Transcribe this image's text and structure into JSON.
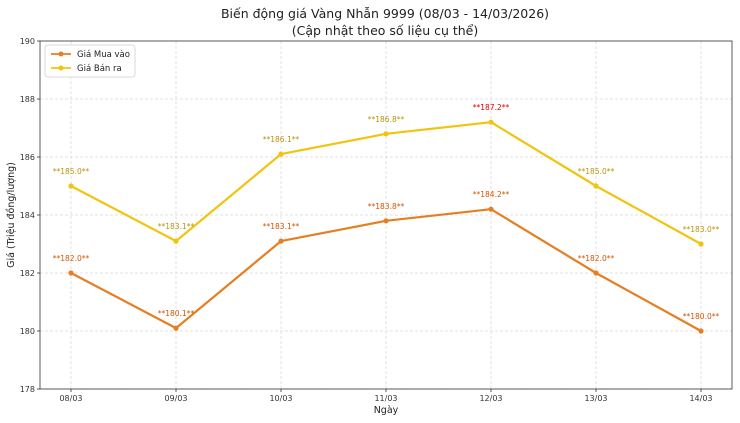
{
  "chart_data": {
    "type": "line",
    "title": "Biến động giá Vàng Nhẫn 9999 (08/03 - 14/03/2026)",
    "subtitle": "(Cập nhật theo số liệu cụ thể)",
    "xlabel": "Ngày",
    "ylabel": "Giá (Triệu đồng/lượng)",
    "categories": [
      "08/03",
      "09/03",
      "10/03",
      "11/03",
      "12/03",
      "13/03",
      "14/03"
    ],
    "ylim": [
      178,
      190
    ],
    "yticks": [
      178,
      180,
      182,
      184,
      186,
      188,
      190
    ],
    "grid": true,
    "legend_position": "top-left",
    "series": [
      {
        "name": "Giá Mua vào",
        "color": "#e67e22",
        "label_color": "#d35400",
        "values": [
          182.0,
          180.1,
          183.1,
          183.8,
          184.2,
          182.0,
          180.0
        ],
        "labels": [
          "**182.0**",
          "**180.1**",
          "**183.1**",
          "**183.8**",
          "**184.2**",
          "**182.0**",
          "**180.0**"
        ]
      },
      {
        "name": "Giá Bán ra",
        "color": "#f1c40f",
        "label_color": "#b7950b",
        "values": [
          185.0,
          183.1,
          186.1,
          186.8,
          187.2,
          185.0,
          183.0
        ],
        "labels": [
          "**185.0**",
          "**183.1**",
          "**186.1**",
          "**186.8**",
          "**187.2**",
          "**185.0**",
          "**183.0**"
        ],
        "highlight_index": 4,
        "highlight_color": "#e00000"
      }
    ]
  }
}
